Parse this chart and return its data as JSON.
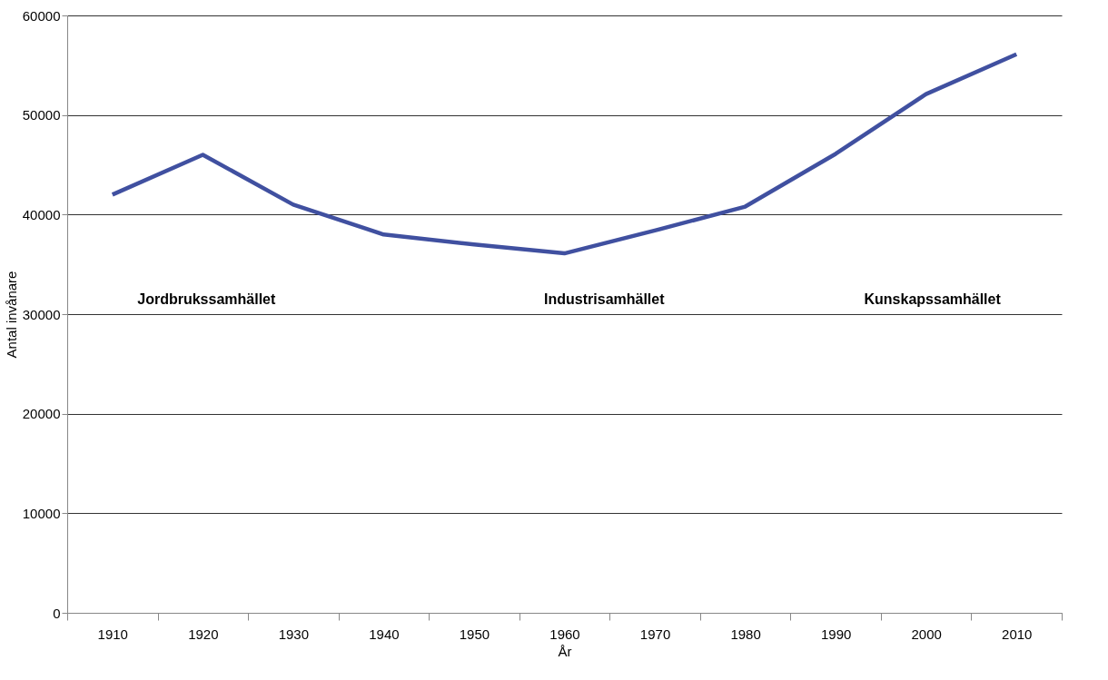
{
  "chart_data": {
    "type": "line",
    "xlabel": "År",
    "ylabel": "Antal invånare",
    "categories": [
      "1910",
      "1920",
      "1930",
      "1940",
      "1950",
      "1960",
      "1970",
      "1980",
      "1990",
      "2000",
      "2010"
    ],
    "series": [
      {
        "color": "#4050a0",
        "values": [
          42000,
          46000,
          41000,
          38000,
          37000,
          36100,
          38400,
          40800,
          46100,
          52100,
          56100
        ]
      }
    ],
    "ylim": [
      0,
      60000
    ],
    "yticks": [
      0,
      10000,
      20000,
      30000,
      40000,
      50000,
      60000
    ],
    "grid": "y",
    "marker": "none",
    "line_style": "solid",
    "annotations": [
      "Jordbrukssamhället",
      "Industrisamhället",
      "Kunskapssamhället"
    ]
  }
}
